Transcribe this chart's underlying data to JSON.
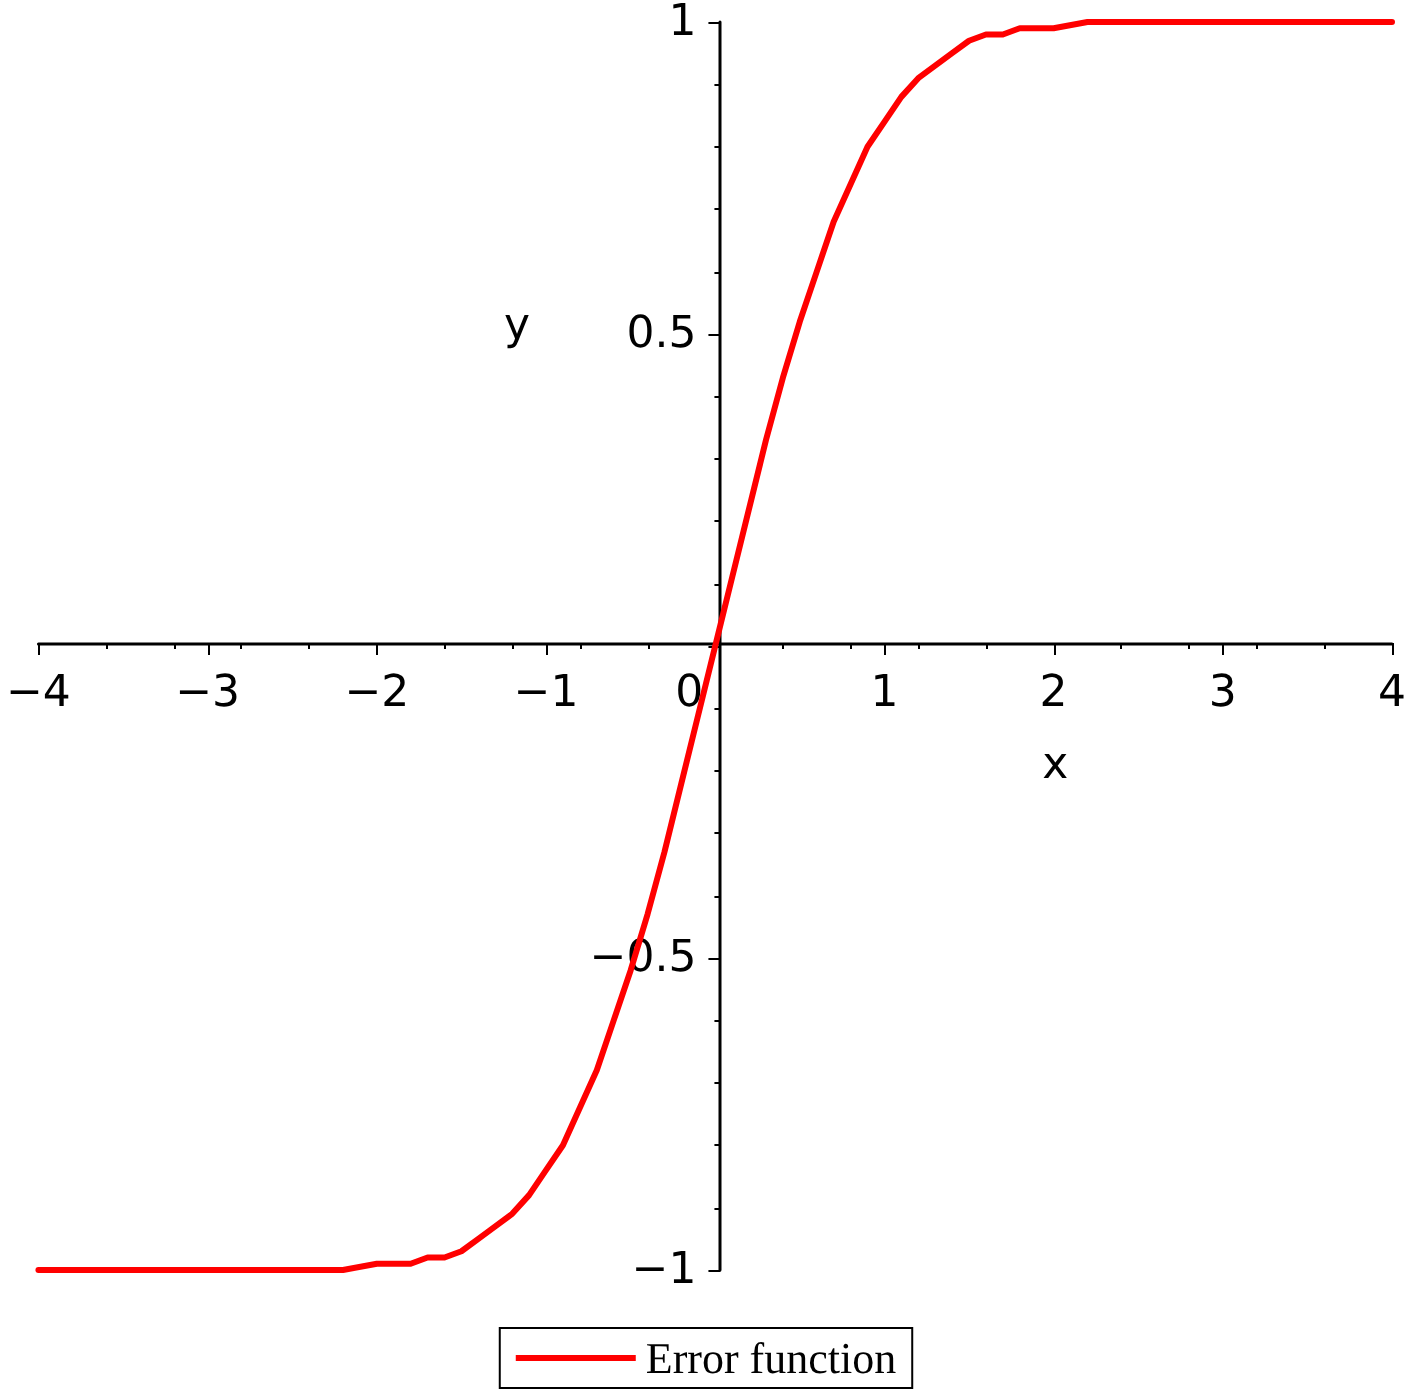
{
  "chart_data": {
    "type": "line",
    "xlabel": "x",
    "ylabel": "y",
    "x": [
      -4,
      -3,
      -2.5,
      -2.2,
      -2,
      -1.9,
      -1.8,
      -1.7,
      -1.6,
      -1.5,
      -1.4,
      -1.3,
      -1.2,
      -1.1,
      -1,
      -0.9,
      -0.8,
      -0.7,
      -0.6,
      -0.5,
      -0.4,
      -0.3,
      -0.2,
      -0.1,
      0,
      0.1,
      0.2,
      0.3,
      0.4,
      0.5,
      0.6,
      0.7,
      0.8,
      0.9,
      1,
      1.1,
      1.2,
      1.3,
      1.4,
      1.5,
      1.6,
      1.7,
      1.8,
      1.9,
      2,
      2.2,
      2.5,
      3,
      4
    ],
    "series": [
      {
        "name": "Error function",
        "color": "#ff0000",
        "values": [
          -1,
          -1,
          -1,
          -1,
          -0.99,
          -0.99,
          -0.99,
          -0.98,
          -0.98,
          -0.97,
          -0.95,
          -0.93,
          -0.91,
          -0.88,
          -0.84,
          -0.8,
          -0.74,
          -0.68,
          -0.6,
          -0.52,
          -0.43,
          -0.33,
          -0.22,
          -0.11,
          0,
          0.11,
          0.22,
          0.33,
          0.43,
          0.52,
          0.6,
          0.68,
          0.74,
          0.8,
          0.84,
          0.88,
          0.91,
          0.93,
          0.95,
          0.97,
          0.98,
          0.98,
          0.99,
          0.99,
          0.99,
          1,
          1,
          1,
          1
        ]
      }
    ],
    "xlim": [
      -4,
      4
    ],
    "xticks": [
      -4,
      -3,
      -2,
      -1,
      0,
      1,
      2,
      3,
      4
    ],
    "ylim": [
      -1,
      1
    ],
    "yticks": [
      -1,
      -0.5,
      {
        "value": 0,
        "label": null
      },
      0.5,
      1
    ],
    "legend": "bottom",
    "marker": "none",
    "line_style": "solid"
  }
}
